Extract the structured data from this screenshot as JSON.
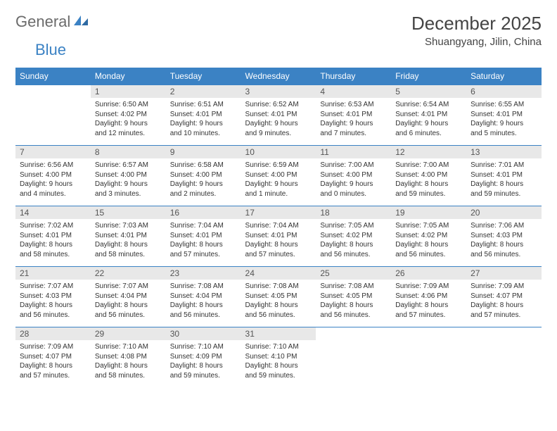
{
  "logo": {
    "word1": "General",
    "word2": "Blue",
    "icon_color": "#3b82c4",
    "text_color": "#6b6b6b"
  },
  "header": {
    "month_title": "December 2025",
    "location": "Shuangyang, Jilin, China"
  },
  "colors": {
    "header_bg": "#3b82c4",
    "header_fg": "#ffffff",
    "daynum_bg": "#e8e8e8",
    "daynum_fg": "#555555",
    "rule": "#3b82c4",
    "body_text": "#333333"
  },
  "typography": {
    "month_title_size": 26,
    "location_size": 15,
    "weekday_size": 12,
    "daynum_size": 12,
    "cell_text_size": 10
  },
  "weekdays": [
    "Sunday",
    "Monday",
    "Tuesday",
    "Wednesday",
    "Thursday",
    "Friday",
    "Saturday"
  ],
  "weeks": [
    [
      {
        "blank": true
      },
      {
        "num": "1",
        "sunrise": "Sunrise: 6:50 AM",
        "sunset": "Sunset: 4:02 PM",
        "daylight1": "Daylight: 9 hours",
        "daylight2": "and 12 minutes."
      },
      {
        "num": "2",
        "sunrise": "Sunrise: 6:51 AM",
        "sunset": "Sunset: 4:01 PM",
        "daylight1": "Daylight: 9 hours",
        "daylight2": "and 10 minutes."
      },
      {
        "num": "3",
        "sunrise": "Sunrise: 6:52 AM",
        "sunset": "Sunset: 4:01 PM",
        "daylight1": "Daylight: 9 hours",
        "daylight2": "and 9 minutes."
      },
      {
        "num": "4",
        "sunrise": "Sunrise: 6:53 AM",
        "sunset": "Sunset: 4:01 PM",
        "daylight1": "Daylight: 9 hours",
        "daylight2": "and 7 minutes."
      },
      {
        "num": "5",
        "sunrise": "Sunrise: 6:54 AM",
        "sunset": "Sunset: 4:01 PM",
        "daylight1": "Daylight: 9 hours",
        "daylight2": "and 6 minutes."
      },
      {
        "num": "6",
        "sunrise": "Sunrise: 6:55 AM",
        "sunset": "Sunset: 4:01 PM",
        "daylight1": "Daylight: 9 hours",
        "daylight2": "and 5 minutes."
      }
    ],
    [
      {
        "num": "7",
        "sunrise": "Sunrise: 6:56 AM",
        "sunset": "Sunset: 4:00 PM",
        "daylight1": "Daylight: 9 hours",
        "daylight2": "and 4 minutes."
      },
      {
        "num": "8",
        "sunrise": "Sunrise: 6:57 AM",
        "sunset": "Sunset: 4:00 PM",
        "daylight1": "Daylight: 9 hours",
        "daylight2": "and 3 minutes."
      },
      {
        "num": "9",
        "sunrise": "Sunrise: 6:58 AM",
        "sunset": "Sunset: 4:00 PM",
        "daylight1": "Daylight: 9 hours",
        "daylight2": "and 2 minutes."
      },
      {
        "num": "10",
        "sunrise": "Sunrise: 6:59 AM",
        "sunset": "Sunset: 4:00 PM",
        "daylight1": "Daylight: 9 hours",
        "daylight2": "and 1 minute."
      },
      {
        "num": "11",
        "sunrise": "Sunrise: 7:00 AM",
        "sunset": "Sunset: 4:00 PM",
        "daylight1": "Daylight: 9 hours",
        "daylight2": "and 0 minutes."
      },
      {
        "num": "12",
        "sunrise": "Sunrise: 7:00 AM",
        "sunset": "Sunset: 4:00 PM",
        "daylight1": "Daylight: 8 hours",
        "daylight2": "and 59 minutes."
      },
      {
        "num": "13",
        "sunrise": "Sunrise: 7:01 AM",
        "sunset": "Sunset: 4:01 PM",
        "daylight1": "Daylight: 8 hours",
        "daylight2": "and 59 minutes."
      }
    ],
    [
      {
        "num": "14",
        "sunrise": "Sunrise: 7:02 AM",
        "sunset": "Sunset: 4:01 PM",
        "daylight1": "Daylight: 8 hours",
        "daylight2": "and 58 minutes."
      },
      {
        "num": "15",
        "sunrise": "Sunrise: 7:03 AM",
        "sunset": "Sunset: 4:01 PM",
        "daylight1": "Daylight: 8 hours",
        "daylight2": "and 58 minutes."
      },
      {
        "num": "16",
        "sunrise": "Sunrise: 7:04 AM",
        "sunset": "Sunset: 4:01 PM",
        "daylight1": "Daylight: 8 hours",
        "daylight2": "and 57 minutes."
      },
      {
        "num": "17",
        "sunrise": "Sunrise: 7:04 AM",
        "sunset": "Sunset: 4:01 PM",
        "daylight1": "Daylight: 8 hours",
        "daylight2": "and 57 minutes."
      },
      {
        "num": "18",
        "sunrise": "Sunrise: 7:05 AM",
        "sunset": "Sunset: 4:02 PM",
        "daylight1": "Daylight: 8 hours",
        "daylight2": "and 56 minutes."
      },
      {
        "num": "19",
        "sunrise": "Sunrise: 7:05 AM",
        "sunset": "Sunset: 4:02 PM",
        "daylight1": "Daylight: 8 hours",
        "daylight2": "and 56 minutes."
      },
      {
        "num": "20",
        "sunrise": "Sunrise: 7:06 AM",
        "sunset": "Sunset: 4:03 PM",
        "daylight1": "Daylight: 8 hours",
        "daylight2": "and 56 minutes."
      }
    ],
    [
      {
        "num": "21",
        "sunrise": "Sunrise: 7:07 AM",
        "sunset": "Sunset: 4:03 PM",
        "daylight1": "Daylight: 8 hours",
        "daylight2": "and 56 minutes."
      },
      {
        "num": "22",
        "sunrise": "Sunrise: 7:07 AM",
        "sunset": "Sunset: 4:04 PM",
        "daylight1": "Daylight: 8 hours",
        "daylight2": "and 56 minutes."
      },
      {
        "num": "23",
        "sunrise": "Sunrise: 7:08 AM",
        "sunset": "Sunset: 4:04 PM",
        "daylight1": "Daylight: 8 hours",
        "daylight2": "and 56 minutes."
      },
      {
        "num": "24",
        "sunrise": "Sunrise: 7:08 AM",
        "sunset": "Sunset: 4:05 PM",
        "daylight1": "Daylight: 8 hours",
        "daylight2": "and 56 minutes."
      },
      {
        "num": "25",
        "sunrise": "Sunrise: 7:08 AM",
        "sunset": "Sunset: 4:05 PM",
        "daylight1": "Daylight: 8 hours",
        "daylight2": "and 56 minutes."
      },
      {
        "num": "26",
        "sunrise": "Sunrise: 7:09 AM",
        "sunset": "Sunset: 4:06 PM",
        "daylight1": "Daylight: 8 hours",
        "daylight2": "and 57 minutes."
      },
      {
        "num": "27",
        "sunrise": "Sunrise: 7:09 AM",
        "sunset": "Sunset: 4:07 PM",
        "daylight1": "Daylight: 8 hours",
        "daylight2": "and 57 minutes."
      }
    ],
    [
      {
        "num": "28",
        "sunrise": "Sunrise: 7:09 AM",
        "sunset": "Sunset: 4:07 PM",
        "daylight1": "Daylight: 8 hours",
        "daylight2": "and 57 minutes."
      },
      {
        "num": "29",
        "sunrise": "Sunrise: 7:10 AM",
        "sunset": "Sunset: 4:08 PM",
        "daylight1": "Daylight: 8 hours",
        "daylight2": "and 58 minutes."
      },
      {
        "num": "30",
        "sunrise": "Sunrise: 7:10 AM",
        "sunset": "Sunset: 4:09 PM",
        "daylight1": "Daylight: 8 hours",
        "daylight2": "and 59 minutes."
      },
      {
        "num": "31",
        "sunrise": "Sunrise: 7:10 AM",
        "sunset": "Sunset: 4:10 PM",
        "daylight1": "Daylight: 8 hours",
        "daylight2": "and 59 minutes."
      },
      {
        "blank": true
      },
      {
        "blank": true
      },
      {
        "blank": true
      }
    ]
  ]
}
